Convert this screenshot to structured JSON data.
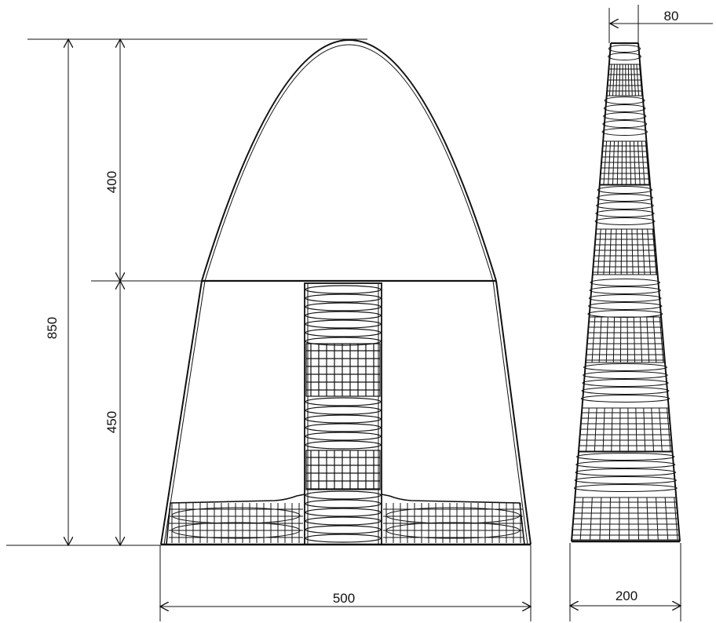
{
  "dimensions": {
    "total_height": "850",
    "dome_height": "400",
    "body_height": "450",
    "base_width": "500",
    "side_width": "200",
    "side_top_width": "80"
  },
  "colors": {
    "line": "#111111",
    "background": "#ffffff"
  }
}
